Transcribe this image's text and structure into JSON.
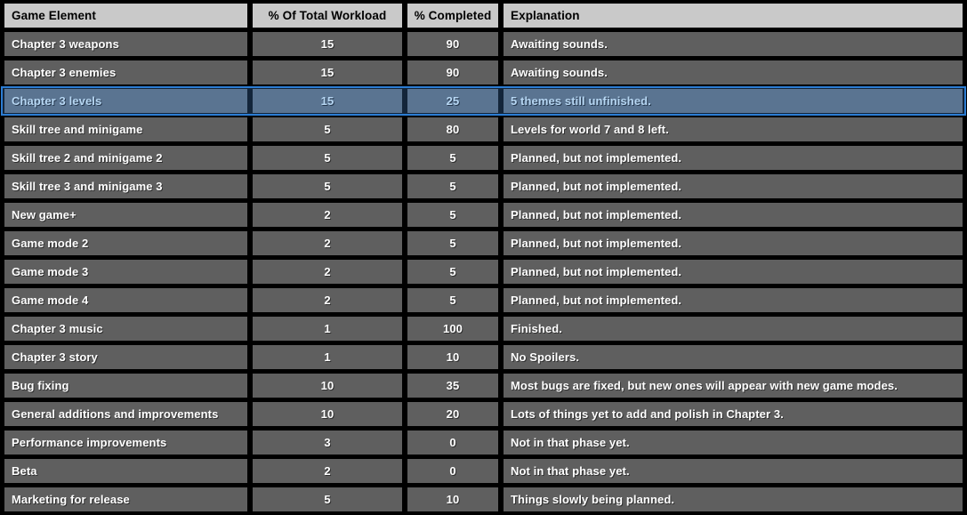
{
  "table": {
    "columns": [
      {
        "label": "Game Element"
      },
      {
        "label": "% Of Total Workload"
      },
      {
        "label": "% Completed"
      },
      {
        "label": "Explanation"
      }
    ],
    "rows": [
      {
        "element": "Chapter 3 weapons",
        "workload": "15",
        "completed": "90",
        "explanation": "Awaiting sounds.",
        "highlighted": false
      },
      {
        "element": "Chapter 3 enemies",
        "workload": "15",
        "completed": "90",
        "explanation": "Awaiting sounds.",
        "highlighted": false
      },
      {
        "element": "Chapter 3 levels",
        "workload": "15",
        "completed": "25",
        "explanation": "5 themes still unfinished.",
        "highlighted": true
      },
      {
        "element": "Skill tree and minigame",
        "workload": "5",
        "completed": "80",
        "explanation": "Levels for world 7 and 8 left.",
        "highlighted": false
      },
      {
        "element": "Skill tree 2 and minigame 2",
        "workload": "5",
        "completed": "5",
        "explanation": "Planned, but not implemented.",
        "highlighted": false
      },
      {
        "element": "Skill tree 3 and minigame 3",
        "workload": "5",
        "completed": "5",
        "explanation": "Planned, but not implemented.",
        "highlighted": false
      },
      {
        "element": "New game+",
        "workload": "2",
        "completed": "5",
        "explanation": "Planned, but not implemented.",
        "highlighted": false
      },
      {
        "element": "Game mode 2",
        "workload": "2",
        "completed": "5",
        "explanation": "Planned, but not implemented.",
        "highlighted": false
      },
      {
        "element": "Game mode 3",
        "workload": "2",
        "completed": "5",
        "explanation": "Planned, but not implemented.",
        "highlighted": false
      },
      {
        "element": "Game mode 4",
        "workload": "2",
        "completed": "5",
        "explanation": "Planned, but not implemented.",
        "highlighted": false
      },
      {
        "element": "Chapter 3 music",
        "workload": "1",
        "completed": "100",
        "explanation": "Finished.",
        "highlighted": false
      },
      {
        "element": "Chapter 3 story",
        "workload": "1",
        "completed": "10",
        "explanation": "No Spoilers.",
        "highlighted": false
      },
      {
        "element": "Bug fixing",
        "workload": "10",
        "completed": "35",
        "explanation": "Most bugs are fixed, but new ones will appear with new game modes.",
        "highlighted": false
      },
      {
        "element": "General additions and improvements",
        "workload": "10",
        "completed": "20",
        "explanation": "Lots of things yet to add and polish in Chapter 3.",
        "highlighted": false
      },
      {
        "element": "Performance improvements",
        "workload": "3",
        "completed": "0",
        "explanation": "Not in that phase yet.",
        "highlighted": false
      },
      {
        "element": "Beta",
        "workload": "2",
        "completed": "0",
        "explanation": "Not in that phase yet.",
        "highlighted": false
      },
      {
        "element": "Marketing for release",
        "workload": "5",
        "completed": "10",
        "explanation": "Things slowly being planned.",
        "highlighted": false
      }
    ]
  },
  "colors": {
    "background": "#000000",
    "row_bg": "#5f5f5f",
    "row_text": "#ffffff",
    "header_bg": "#c9c9c9",
    "header_text": "#000000",
    "selected_bg": "#5a7491",
    "selected_text": "#b7d7f3",
    "selected_border": "#2b7cd3",
    "selected_frame": "#13253a"
  }
}
